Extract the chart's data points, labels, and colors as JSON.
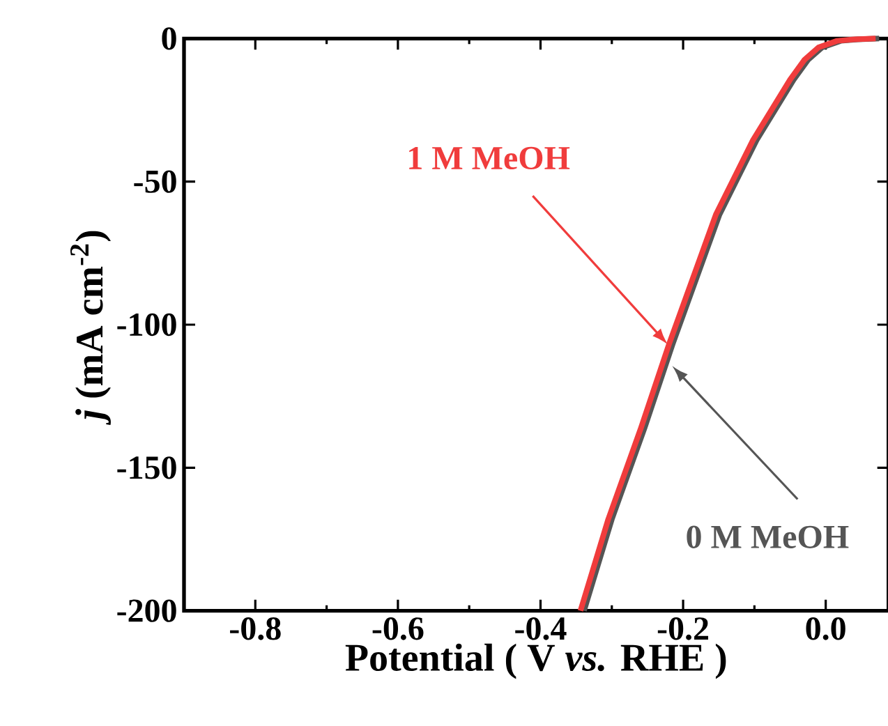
{
  "chart_data": {
    "type": "line",
    "xlabel": "Potential ( V *vs.* RHE )",
    "ylabel": "*j* (mA cm$^{-2}$)",
    "xlim": [
      -0.9,
      0.088
    ],
    "ylim": [
      -200,
      0
    ],
    "xticks": [
      -0.8,
      -0.6,
      -0.4,
      -0.2,
      {
        "value": 0,
        "label": "0.0"
      }
    ],
    "yticks": [
      -200,
      -150,
      -100,
      -50,
      0
    ],
    "series": [
      {
        "color": "#555555",
        "x": [
          -0.339,
          -0.3,
          -0.254,
          -0.215,
          -0.149,
          -0.097,
          -0.045,
          -0.025,
          -0.005,
          0.021,
          0.045,
          0.075
        ],
        "values": [
          -200,
          -168,
          -136,
          -107,
          -61.5,
          -35.5,
          -14.4,
          -7.5,
          -3.1,
          -0.8,
          -0.3,
          0
        ]
      },
      {
        "color": "#f03c3c",
        "x": [
          -0.344,
          -0.305,
          -0.259,
          -0.22,
          -0.154,
          -0.102,
          -0.05,
          -0.03,
          -0.01,
          0.016,
          0.04,
          0.07
        ],
        "values": [
          -200,
          -168,
          -136,
          -107,
          -61.5,
          -35.5,
          -14.4,
          -7.5,
          -3.1,
          -0.8,
          -0.3,
          0
        ]
      }
    ],
    "annotations": [
      "0 M MeOH",
      "1 M MeOH"
    ],
    "grid": false,
    "legend": false,
    "line_style": "solid",
    "marker": "none"
  }
}
